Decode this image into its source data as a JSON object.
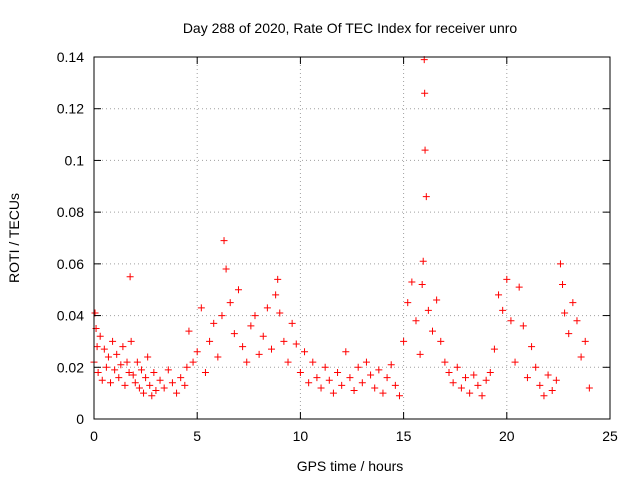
{
  "chart_data": {
    "type": "scatter",
    "title": "Day 288 of 2020, Rate Of TEC Index for receiver unro",
    "xlabel": "GPS time / hours",
    "ylabel": "ROTI / TECUs",
    "xlim": [
      0,
      25
    ],
    "ylim": [
      0,
      0.14
    ],
    "xticks": [
      0,
      5,
      10,
      15,
      20,
      25
    ],
    "yticks": [
      0,
      0.02,
      0.04,
      0.06,
      0.08,
      0.1,
      0.12,
      0.14
    ],
    "xtick_labels": [
      "0",
      "5",
      "10",
      "15",
      "20",
      "25"
    ],
    "ytick_labels": [
      "0",
      "0.02",
      "0.04",
      "0.06",
      "0.08",
      "0.1",
      "0.12",
      "0.14"
    ],
    "grid": true,
    "marker": "plus",
    "color": "#ff0000",
    "series": [
      {
        "x": [
          0.0,
          0.05,
          0.1,
          0.15,
          0.2,
          0.3,
          0.4,
          0.5,
          0.6,
          0.7,
          0.8,
          0.9,
          1.0,
          1.1,
          1.2,
          1.3,
          1.4,
          1.5,
          1.6,
          1.7,
          1.75,
          1.8,
          1.9,
          2.0,
          2.1,
          2.2,
          2.3,
          2.4,
          2.5,
          2.6,
          2.7,
          2.8,
          2.9,
          3.0,
          3.2,
          3.4,
          3.6,
          3.8,
          4.0,
          4.2,
          4.4,
          4.5,
          4.6,
          4.8,
          5.0,
          5.2,
          5.4,
          5.6,
          5.8,
          6.0,
          6.2,
          6.3,
          6.4,
          6.6,
          6.8,
          7.0,
          7.2,
          7.4,
          7.6,
          7.8,
          8.0,
          8.2,
          8.4,
          8.6,
          8.8,
          8.9,
          9.0,
          9.2,
          9.4,
          9.6,
          9.8,
          10.0,
          10.2,
          10.4,
          10.6,
          10.8,
          11.0,
          11.2,
          11.4,
          11.6,
          11.8,
          12.0,
          12.2,
          12.4,
          12.6,
          12.8,
          13.0,
          13.2,
          13.4,
          13.6,
          13.8,
          14.0,
          14.2,
          14.4,
          14.6,
          14.8,
          15.0,
          15.2,
          15.4,
          15.6,
          15.8,
          15.9,
          15.95,
          16.0,
          16.02,
          16.04,
          16.1,
          16.2,
          16.4,
          16.6,
          16.8,
          17.0,
          17.2,
          17.4,
          17.6,
          17.8,
          18.0,
          18.2,
          18.4,
          18.6,
          18.8,
          19.0,
          19.2,
          19.4,
          19.6,
          19.8,
          20.0,
          20.2,
          20.4,
          20.6,
          20.8,
          21.0,
          21.2,
          21.4,
          21.6,
          21.8,
          22.0,
          22.2,
          22.4,
          22.6,
          22.7,
          22.8,
          23.0,
          23.2,
          23.4,
          23.6,
          23.8,
          24.0
        ],
        "y": [
          0.022,
          0.041,
          0.035,
          0.028,
          0.018,
          0.032,
          0.015,
          0.027,
          0.02,
          0.024,
          0.014,
          0.03,
          0.019,
          0.025,
          0.016,
          0.021,
          0.028,
          0.013,
          0.022,
          0.018,
          0.055,
          0.03,
          0.017,
          0.014,
          0.022,
          0.012,
          0.019,
          0.01,
          0.016,
          0.024,
          0.013,
          0.009,
          0.018,
          0.011,
          0.015,
          0.012,
          0.019,
          0.014,
          0.01,
          0.016,
          0.013,
          0.02,
          0.034,
          0.022,
          0.026,
          0.043,
          0.018,
          0.03,
          0.037,
          0.024,
          0.04,
          0.069,
          0.058,
          0.045,
          0.033,
          0.05,
          0.028,
          0.022,
          0.036,
          0.04,
          0.025,
          0.032,
          0.043,
          0.027,
          0.048,
          0.054,
          0.041,
          0.03,
          0.022,
          0.037,
          0.029,
          0.018,
          0.026,
          0.014,
          0.022,
          0.016,
          0.012,
          0.02,
          0.015,
          0.01,
          0.018,
          0.013,
          0.026,
          0.016,
          0.011,
          0.02,
          0.014,
          0.022,
          0.017,
          0.012,
          0.019,
          0.01,
          0.016,
          0.021,
          0.013,
          0.009,
          0.03,
          0.045,
          0.053,
          0.038,
          0.025,
          0.052,
          0.061,
          0.139,
          0.126,
          0.104,
          0.086,
          0.042,
          0.034,
          0.046,
          0.03,
          0.022,
          0.018,
          0.014,
          0.02,
          0.012,
          0.016,
          0.01,
          0.017,
          0.013,
          0.009,
          0.015,
          0.018,
          0.027,
          0.048,
          0.042,
          0.054,
          0.038,
          0.022,
          0.051,
          0.036,
          0.016,
          0.028,
          0.02,
          0.013,
          0.009,
          0.017,
          0.011,
          0.015,
          0.06,
          0.052,
          0.041,
          0.033,
          0.045,
          0.038,
          0.024,
          0.03,
          0.012
        ]
      }
    ]
  }
}
